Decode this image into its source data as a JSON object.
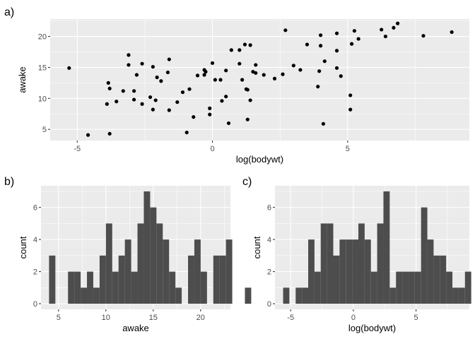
{
  "chart_data": [
    {
      "tag": "a)",
      "type": "scatter",
      "xlabel": "log(bodywt)",
      "ylabel": "awake",
      "xlim": [
        -6.0,
        9.5
      ],
      "ylim": [
        3.2,
        22.8
      ],
      "xticks": [
        -5,
        0,
        5
      ],
      "yticks": [
        5,
        10,
        15,
        20
      ],
      "grid": true,
      "points": [
        [
          -5.3,
          14.9
        ],
        [
          -4.6,
          4.1
        ],
        [
          -3.8,
          4.3
        ],
        [
          -3.9,
          9.1
        ],
        [
          -3.8,
          11.6
        ],
        [
          -3.85,
          12.5
        ],
        [
          -3.55,
          9.5
        ],
        [
          -3.3,
          11.2
        ],
        [
          -3.1,
          17.0
        ],
        [
          -3.1,
          15.4
        ],
        [
          -2.9,
          11.2
        ],
        [
          -2.9,
          9.8
        ],
        [
          -2.8,
          13.8
        ],
        [
          -2.6,
          15.6
        ],
        [
          -2.6,
          9.1
        ],
        [
          -2.3,
          10.2
        ],
        [
          -2.2,
          15.1
        ],
        [
          -2.2,
          8.2
        ],
        [
          -2.1,
          9.7
        ],
        [
          -2.05,
          13.4
        ],
        [
          -1.9,
          12.8
        ],
        [
          -1.65,
          14.2
        ],
        [
          -1.6,
          16.3
        ],
        [
          -1.6,
          8.1
        ],
        [
          -1.3,
          9.4
        ],
        [
          -1.1,
          11.0
        ],
        [
          -0.95,
          4.5
        ],
        [
          -0.85,
          11.5
        ],
        [
          -0.7,
          7.0
        ],
        [
          -0.55,
          13.7
        ],
        [
          -0.3,
          13.8
        ],
        [
          -0.3,
          14.6
        ],
        [
          -0.25,
          14.3
        ],
        [
          -0.1,
          8.4
        ],
        [
          -0.1,
          7.4
        ],
        [
          0.0,
          15.7
        ],
        [
          0.1,
          13.0
        ],
        [
          0.3,
          13.0
        ],
        [
          0.35,
          9.6
        ],
        [
          0.5,
          10.3
        ],
        [
          0.5,
          14.5
        ],
        [
          0.6,
          6.0
        ],
        [
          0.7,
          17.8
        ],
        [
          1.0,
          15.6
        ],
        [
          1.0,
          17.8
        ],
        [
          1.1,
          13.0
        ],
        [
          1.2,
          18.7
        ],
        [
          1.25,
          11.5
        ],
        [
          1.3,
          6.6
        ],
        [
          1.3,
          11.4
        ],
        [
          1.4,
          18.6
        ],
        [
          1.4,
          9.7
        ],
        [
          1.5,
          14.3
        ],
        [
          1.6,
          14.1
        ],
        [
          1.6,
          15.4
        ],
        [
          1.9,
          13.8
        ],
        [
          2.3,
          13.2
        ],
        [
          2.6,
          13.9
        ],
        [
          2.7,
          21.0
        ],
        [
          3.0,
          15.3
        ],
        [
          3.25,
          14.6
        ],
        [
          3.5,
          18.7
        ],
        [
          3.9,
          11.9
        ],
        [
          3.95,
          14.4
        ],
        [
          4.0,
          20.2
        ],
        [
          4.0,
          18.5
        ],
        [
          4.1,
          5.9
        ],
        [
          4.15,
          16.0
        ],
        [
          4.6,
          17.7
        ],
        [
          4.6,
          20.5
        ],
        [
          4.6,
          14.9
        ],
        [
          4.75,
          13.6
        ],
        [
          5.1,
          10.5
        ],
        [
          5.1,
          8.2
        ],
        [
          5.15,
          18.8
        ],
        [
          5.25,
          20.9
        ],
        [
          5.4,
          19.6
        ],
        [
          6.25,
          21.1
        ],
        [
          6.4,
          20.0
        ],
        [
          6.7,
          21.4
        ],
        [
          6.85,
          22.1
        ],
        [
          7.8,
          20.1
        ],
        [
          8.85,
          20.7
        ]
      ]
    },
    {
      "tag": "b)",
      "type": "bar",
      "xlabel": "awake",
      "ylabel": "count",
      "xlim": [
        3.15,
        23.15
      ],
      "ylim": [
        -0.35,
        7.35
      ],
      "xticks": [
        5,
        10,
        15,
        20
      ],
      "yticks": [
        0,
        2,
        4,
        6
      ],
      "grid": true,
      "bin_width": 0.667,
      "bin_start": 4.0,
      "values": [
        3,
        0,
        0,
        2,
        2,
        1,
        2,
        1,
        3,
        5,
        2,
        3,
        4,
        2,
        5,
        7,
        6,
        5,
        4,
        2,
        1,
        0,
        3,
        4,
        2,
        0,
        3,
        3,
        4,
        0,
        0,
        1
      ]
    },
    {
      "tag": "c)",
      "type": "bar",
      "xlabel": "log(bodywt)",
      "ylabel": "count",
      "xlim": [
        -6.25,
        9.25
      ],
      "ylim": [
        -0.35,
        7.35
      ],
      "xticks": [
        -5,
        0,
        5
      ],
      "yticks": [
        0,
        2,
        4,
        6
      ],
      "grid": true,
      "bin_width": 0.5,
      "bin_start": -5.6,
      "values": [
        1,
        0,
        1,
        1,
        4,
        2,
        5,
        5,
        3,
        4,
        4,
        4,
        5,
        4,
        2,
        5,
        7,
        1,
        2,
        2,
        2,
        2,
        6,
        4,
        3,
        3,
        2,
        1,
        1,
        2,
        0,
        1,
        0,
        1
      ]
    }
  ]
}
